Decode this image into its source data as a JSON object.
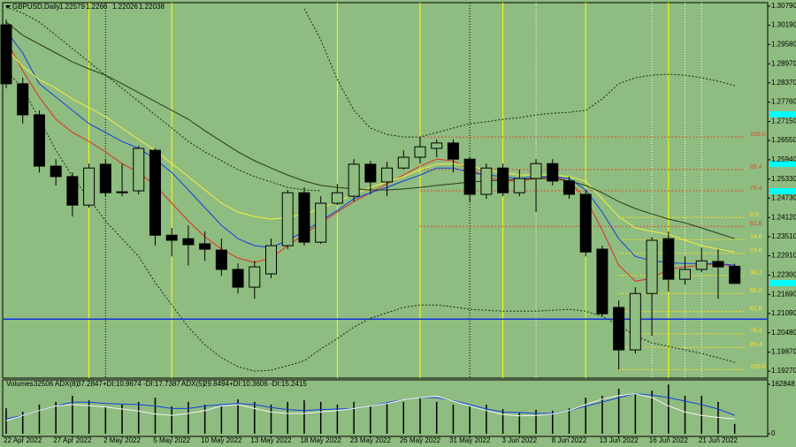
{
  "chart_data": [
    {
      "type": "candlestick",
      "title": "GBPUSD,Daily",
      "categories": [
        null,
        "22 Apr 2022",
        null,
        null,
        "27 Apr 2022",
        null,
        null,
        "2 May 2022",
        null,
        null,
        "5 May 2022",
        null,
        null,
        "10 May 2022",
        null,
        null,
        "13 May 2022",
        null,
        null,
        "18 May 2022",
        null,
        null,
        "23 May 2022",
        null,
        null,
        "26 May 2022",
        null,
        null,
        "31 May 2022",
        null,
        null,
        "3 Jun 2022",
        null,
        null,
        "8 Jun 2022",
        null,
        null,
        "13 Jun 2022",
        null,
        null,
        "16 Jun 2022",
        null,
        null,
        "21 Jun 2022",
        null
      ],
      "open": [
        1.302,
        1.2834,
        1.2736,
        1.2574,
        1.2541,
        1.2451,
        1.258,
        1.249,
        1.2496,
        1.2624,
        1.2356,
        1.2345,
        1.2329,
        1.2309,
        1.2248,
        1.2192,
        1.2234,
        1.2323,
        1.249,
        1.2334,
        1.2457,
        1.2479,
        1.258,
        1.2524,
        1.2568,
        1.2602,
        1.263,
        1.2647,
        1.2596,
        1.2485,
        1.2568,
        1.249,
        1.2535,
        1.2582,
        1.2527,
        1.2485,
        1.2312,
        1.2128,
        1.1994,
        1.2172,
        1.2345,
        1.2217,
        1.2248,
        1.2273,
        1.22579
      ],
      "high": [
        1.3037,
        1.2853,
        1.275,
        1.2596,
        1.2554,
        1.2582,
        1.2596,
        1.2582,
        1.2638,
        1.263,
        1.2379,
        1.2387,
        1.2368,
        1.2345,
        1.2267,
        1.2275,
        1.2345,
        1.2499,
        1.2507,
        1.2479,
        1.2518,
        1.2596,
        1.2591,
        1.2588,
        1.2624,
        1.2666,
        1.2658,
        1.2658,
        1.2602,
        1.2582,
        1.2582,
        1.2563,
        1.2596,
        1.2596,
        1.2541,
        1.2499,
        1.2323,
        1.215,
        1.2192,
        1.2351,
        1.2368,
        1.2289,
        1.2317,
        1.2312,
        1.2266
      ],
      "low": [
        1.282,
        1.2708,
        1.2554,
        1.2513,
        1.2415,
        1.2443,
        1.2479,
        1.2479,
        1.2485,
        1.2323,
        1.2289,
        1.2261,
        1.2275,
        1.2228,
        1.2172,
        1.2155,
        1.222,
        1.2312,
        1.2323,
        1.2329,
        1.2451,
        1.2462,
        1.2485,
        1.2479,
        1.2563,
        1.2582,
        1.2602,
        1.2554,
        1.2462,
        1.2471,
        1.2479,
        1.2479,
        1.2429,
        1.2513,
        1.2471,
        1.2289,
        1.21,
        1.1932,
        1.1983,
        1.2038,
        1.2178,
        1.22,
        1.2239,
        1.2155,
        1.22026
      ],
      "close": [
        1.2834,
        1.2736,
        1.2574,
        1.2541,
        1.2451,
        1.2568,
        1.249,
        1.2493,
        1.263,
        1.2356,
        1.234,
        1.2326,
        1.2312,
        1.2248,
        1.2192,
        1.2256,
        1.2323,
        1.249,
        1.2334,
        1.2457,
        1.249,
        1.258,
        1.2524,
        1.2568,
        1.2602,
        1.2635,
        1.2647,
        1.2596,
        1.2485,
        1.2568,
        1.249,
        1.2535,
        1.2582,
        1.2527,
        1.2485,
        1.2303,
        1.2108,
        1.1994,
        1.2172,
        1.234,
        1.2217,
        1.2248,
        1.2275,
        1.2256,
        1.22038
      ],
      "up_color": "#8fbc80",
      "down_color": "#000000",
      "series": [
        {
          "color": "#e03020",
          "style": "solid",
          "values": [
            1.2973,
            1.2875,
            1.2792,
            1.2722,
            1.268,
            1.2652,
            1.2619,
            1.2582,
            1.2554,
            1.2513,
            1.2457,
            1.2401,
            1.2351,
            1.2312,
            1.2284,
            1.227,
            1.2284,
            1.2323,
            1.2359,
            1.2395,
            1.2429,
            1.2462,
            1.249,
            1.2518,
            1.2546,
            1.2574,
            1.2596,
            1.2591,
            1.2563,
            1.2541,
            1.2527,
            1.2527,
            1.2535,
            1.2541,
            1.2527,
            1.2471,
            1.2373,
            1.2261,
            1.2211,
            1.222,
            1.2248,
            1.2256,
            1.2261,
            1.2267,
            1.2256
          ]
        },
        {
          "color": "#1040e0",
          "style": "solid",
          "values": [
            1.3001,
            1.2931,
            1.2834,
            1.2792,
            1.275,
            1.2708,
            1.268,
            1.2652,
            1.263,
            1.2596,
            1.2554,
            1.2499,
            1.2443,
            1.2387,
            1.2345,
            1.2323,
            1.2317,
            1.234,
            1.2368,
            1.2401,
            1.2434,
            1.2471,
            1.249,
            1.2507,
            1.2527,
            1.2546,
            1.2568,
            1.2568,
            1.2554,
            1.2546,
            1.2541,
            1.2535,
            1.2541,
            1.2541,
            1.2535,
            1.2499,
            1.2429,
            1.2345,
            1.2289,
            1.2275,
            1.227,
            1.2267,
            1.2267,
            1.2267,
            1.2261
          ]
        },
        {
          "color": "#f0f040",
          "style": "solid",
          "values": [
            1.2945,
            1.2889,
            1.2847,
            1.282,
            1.2786,
            1.2758,
            1.273,
            1.2694,
            1.2658,
            1.2624,
            1.2582,
            1.2541,
            1.2499,
            1.2457,
            1.2429,
            1.2415,
            1.2407,
            1.2412,
            1.2423,
            1.244,
            1.2462,
            1.2485,
            1.2507,
            1.2524,
            1.2541,
            1.2563,
            1.258,
            1.2582,
            1.2574,
            1.2563,
            1.2554,
            1.2546,
            1.2546,
            1.2546,
            1.2541,
            1.2527,
            1.2471,
            1.2415,
            1.2379,
            1.2368,
            1.2359,
            1.234,
            1.2323,
            1.2312,
            1.2303
          ]
        },
        {
          "color": "#2a3a20",
          "style": "solid",
          "values": [
            1.3029,
            1.2987,
            1.2959,
            1.2931,
            1.2903,
            1.2881,
            1.2861,
            1.2834,
            1.2806,
            1.2778,
            1.275,
            1.2722,
            1.2686,
            1.2652,
            1.2619,
            1.2591,
            1.2568,
            1.2546,
            1.2527,
            1.2513,
            1.2507,
            1.2502,
            1.2499,
            1.2499,
            1.2502,
            1.2507,
            1.2513,
            1.2518,
            1.2524,
            1.2527,
            1.253,
            1.2532,
            1.2535,
            1.2535,
            1.2527,
            1.2513,
            1.249,
            1.2462,
            1.244,
            1.2423,
            1.2407,
            1.2395,
            1.2379,
            1.2362,
            1.2345
          ]
        },
        {
          "color": "#1a2a12",
          "style": "dotted",
          "values": [
            1.3076,
            1.3057,
            1.3029,
            1.2987,
            1.2945,
            1.2903,
            1.2861,
            1.282,
            1.2778,
            1.2736,
            1.2694,
            1.2652,
            1.2619,
            1.2591,
            1.2563,
            1.2541,
            1.2524,
            1.2507,
            1.2499,
            1.2496,
            null,
            null,
            null,
            null,
            null,
            null,
            null,
            null,
            null,
            null,
            null,
            null,
            null,
            null,
            null,
            null,
            null,
            null,
            null,
            null,
            null,
            null,
            null,
            null,
            null
          ]
        },
        {
          "color": "#1a2a12",
          "style": "dotted",
          "values": [
            null,
            null,
            null,
            null,
            null,
            null,
            null,
            null,
            null,
            null,
            null,
            null,
            null,
            null,
            null,
            null,
            null,
            null,
            1.3071,
            1.2973,
            1.2847,
            1.275,
            1.2694,
            1.2674,
            1.2666,
            1.2666,
            1.268,
            1.2694,
            1.2708,
            1.2714,
            1.2722,
            1.2727,
            1.2736,
            1.2741,
            1.2744,
            1.275,
            1.2786,
            1.2834,
            1.2853,
            1.2861,
            1.2864,
            1.2861,
            1.2853,
            1.2842,
            1.2828
          ]
        },
        {
          "color": "#1a2a12",
          "style": "dotted",
          "values": [
            1.2875,
            1.282,
            1.2722,
            1.2624,
            1.2541,
            1.2471,
            1.2401,
            1.2345,
            1.2289,
            1.2206,
            1.2136,
            1.2066,
            1.201,
            1.1969,
            1.1941,
            1.1927,
            1.193,
            1.1944,
            1.196,
            1.1997,
            1.203,
            1.2066,
            1.2094,
            1.2111,
            1.2128,
            1.2136,
            1.2136,
            1.213,
            1.2122,
            1.2119,
            1.2116,
            1.2116,
            1.2116,
            1.2119,
            1.2122,
            1.2116,
            1.21,
            1.2072,
            1.2038,
            1.2016,
            1.2005,
            1.1994,
            1.1983,
            1.1969,
            1.1955
          ]
        }
      ],
      "hlines": [
        {
          "value": 1.2091,
          "color": "#1030e0"
        }
      ],
      "fib_levels": [
        {
          "label": "100.0",
          "value": 1.2666,
          "color": "#e04a30"
        },
        {
          "label": "85.4",
          "value": 1.2563,
          "color": "#e04a30"
        },
        {
          "label": "76.4",
          "value": 1.2496,
          "color": "#e04a30"
        },
        {
          "label": "61.8",
          "value": 1.2384,
          "color": "#e04a30"
        },
        {
          "label": "0.0",
          "value": 1.2412,
          "color": "#ffe020"
        },
        {
          "label": "14.6",
          "value": 1.2342,
          "color": "#ffe020"
        },
        {
          "label": "23.6",
          "value": 1.2299,
          "color": "#ffe020"
        },
        {
          "label": "38.2",
          "value": 1.2229,
          "color": "#ffe020"
        },
        {
          "label": "50.0",
          "value": 1.2172,
          "color": "#ffe020"
        },
        {
          "label": "61.8",
          "value": 1.2115,
          "color": "#ffe020"
        },
        {
          "label": "76.4",
          "value": 1.2045,
          "color": "#ffe020"
        },
        {
          "label": "85.4",
          "value": 1.2002,
          "color": "#ffe020"
        },
        {
          "label": "100.0",
          "value": 1.1932,
          "color": "#ffe020"
        }
      ],
      "ylim": [
        1.1905,
        1.309
      ],
      "yticks": [
        {
          "value": 1.3079,
          "label": "1.30790"
        },
        {
          "value": 1.3019,
          "label": "1.30190"
        },
        {
          "value": 1.2958,
          "label": "1.29580"
        },
        {
          "value": 1.2897,
          "label": "1.28970"
        },
        {
          "value": 1.2837,
          "label": "1.28370"
        },
        {
          "value": 1.2776,
          "label": "1.27760"
        },
        {
          "value": 1.2715,
          "label": "1.27150"
        },
        {
          "value": 1.2655,
          "label": "1.26550"
        },
        {
          "value": 1.2594,
          "label": "1.25940"
        },
        {
          "value": 1.2533,
          "label": "1.25330"
        },
        {
          "value": 1.2473,
          "label": "1.24730"
        },
        {
          "value": 1.2412,
          "label": "1.24120"
        },
        {
          "value": 1.2351,
          "label": "1.23510"
        },
        {
          "value": 1.2291,
          "label": "1.22910"
        },
        {
          "value": 1.223,
          "label": "1.22300"
        },
        {
          "value": 1.2169,
          "label": "1.21690"
        },
        {
          "value": 1.2109,
          "label": "1.21090"
        },
        {
          "value": 1.2048,
          "label": "1.20480"
        },
        {
          "value": 1.1987,
          "label": "1.19870"
        },
        {
          "value": 1.1927,
          "label": "1.19270"
        }
      ]
    },
    {
      "type": "bar",
      "title": "Volumes",
      "color": "#000000",
      "values": [
        84000,
        73000,
        96000,
        105000,
        125000,
        110000,
        90000,
        96000,
        105000,
        119000,
        90000,
        105000,
        96000,
        90000,
        113000,
        105000,
        96000,
        105000,
        110000,
        105000,
        96000,
        105000,
        90000,
        102000,
        105000,
        119000,
        105000,
        96000,
        90000,
        96000,
        81000,
        70000,
        79000,
        76000,
        84000,
        119000,
        125000,
        148000,
        134000,
        142000,
        162000,
        125000,
        125000,
        105000,
        32506
      ],
      "ylim": [
        0,
        162848
      ],
      "yticks": [
        162848,
        0
      ],
      "y2lim": [
        0,
        100
      ],
      "series": [
        {
          "name": "ADX(8)",
          "di": "+DI:10.9674 -DI:17.7387",
          "color": "#1040e0",
          "axis": "y2",
          "values": [
            30,
            37,
            47,
            56,
            64,
            64,
            61,
            60,
            59,
            56,
            51,
            51,
            56,
            59,
            61,
            59,
            53,
            49,
            47,
            49,
            50,
            51,
            56,
            63,
            69,
            73,
            73,
            67,
            59,
            50,
            44,
            43,
            41,
            41,
            47,
            56,
            64,
            73,
            81,
            78,
            73,
            66,
            59,
            50,
            37.2847
          ]
        },
        {
          "name": "ADX(5)",
          "di": "+DI:10.3606 -DI:15.2415",
          "color": "#f4f4f4",
          "axis": "y2",
          "values": [
            26,
            37,
            47,
            56,
            59,
            57,
            54,
            50,
            46,
            40,
            37,
            41,
            47,
            56,
            59,
            51,
            44,
            41,
            41,
            44,
            47,
            51,
            56,
            61,
            69,
            73,
            76,
            66,
            56,
            47,
            39,
            36,
            37,
            40,
            47,
            59,
            70,
            77,
            81,
            73,
            56,
            44,
            37,
            33,
            29.8494
          ]
        }
      ]
    }
  ]
}
